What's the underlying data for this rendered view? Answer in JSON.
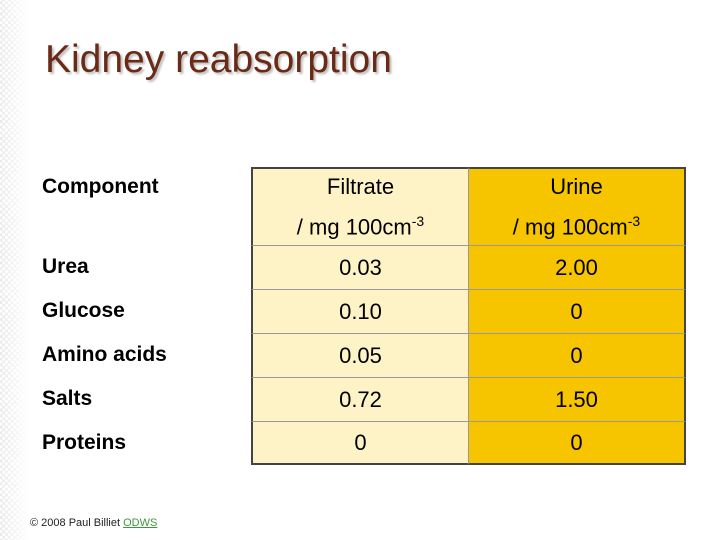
{
  "title": "Kidney reabsorption",
  "table": {
    "header": {
      "component": "Component",
      "columns": [
        {
          "name": "Filtrate",
          "unit": "/ mg 100cm",
          "exponent": "-3"
        },
        {
          "name": "Urine",
          "unit": "/ mg 100cm",
          "exponent": "-3"
        }
      ]
    },
    "rows": [
      [
        "Urea",
        "0.03",
        "2.00"
      ],
      [
        "Glucose",
        "0.10",
        "0"
      ],
      [
        "Amino acids",
        "0.05",
        "0"
      ],
      [
        "Salts",
        "0.72",
        "1.50"
      ],
      [
        "Proteins",
        "0",
        "0"
      ]
    ]
  },
  "footer": {
    "text": "© 2008 Paul Billiet",
    "link": "ODWS"
  }
}
